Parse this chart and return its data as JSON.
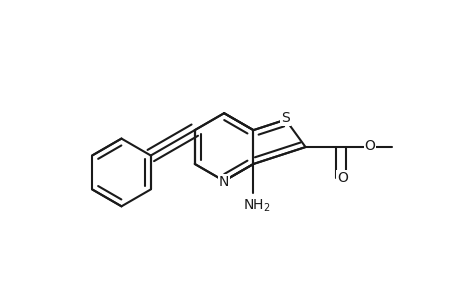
{
  "bg_color": "#ffffff",
  "line_color": "#1a1a1a",
  "line_width": 1.5,
  "font_size": 10,
  "fig_width": 4.6,
  "fig_height": 3.0,
  "dpi": 100,
  "xlim": [
    -0.05,
    1.1
  ],
  "ylim": [
    -0.05,
    0.95
  ]
}
